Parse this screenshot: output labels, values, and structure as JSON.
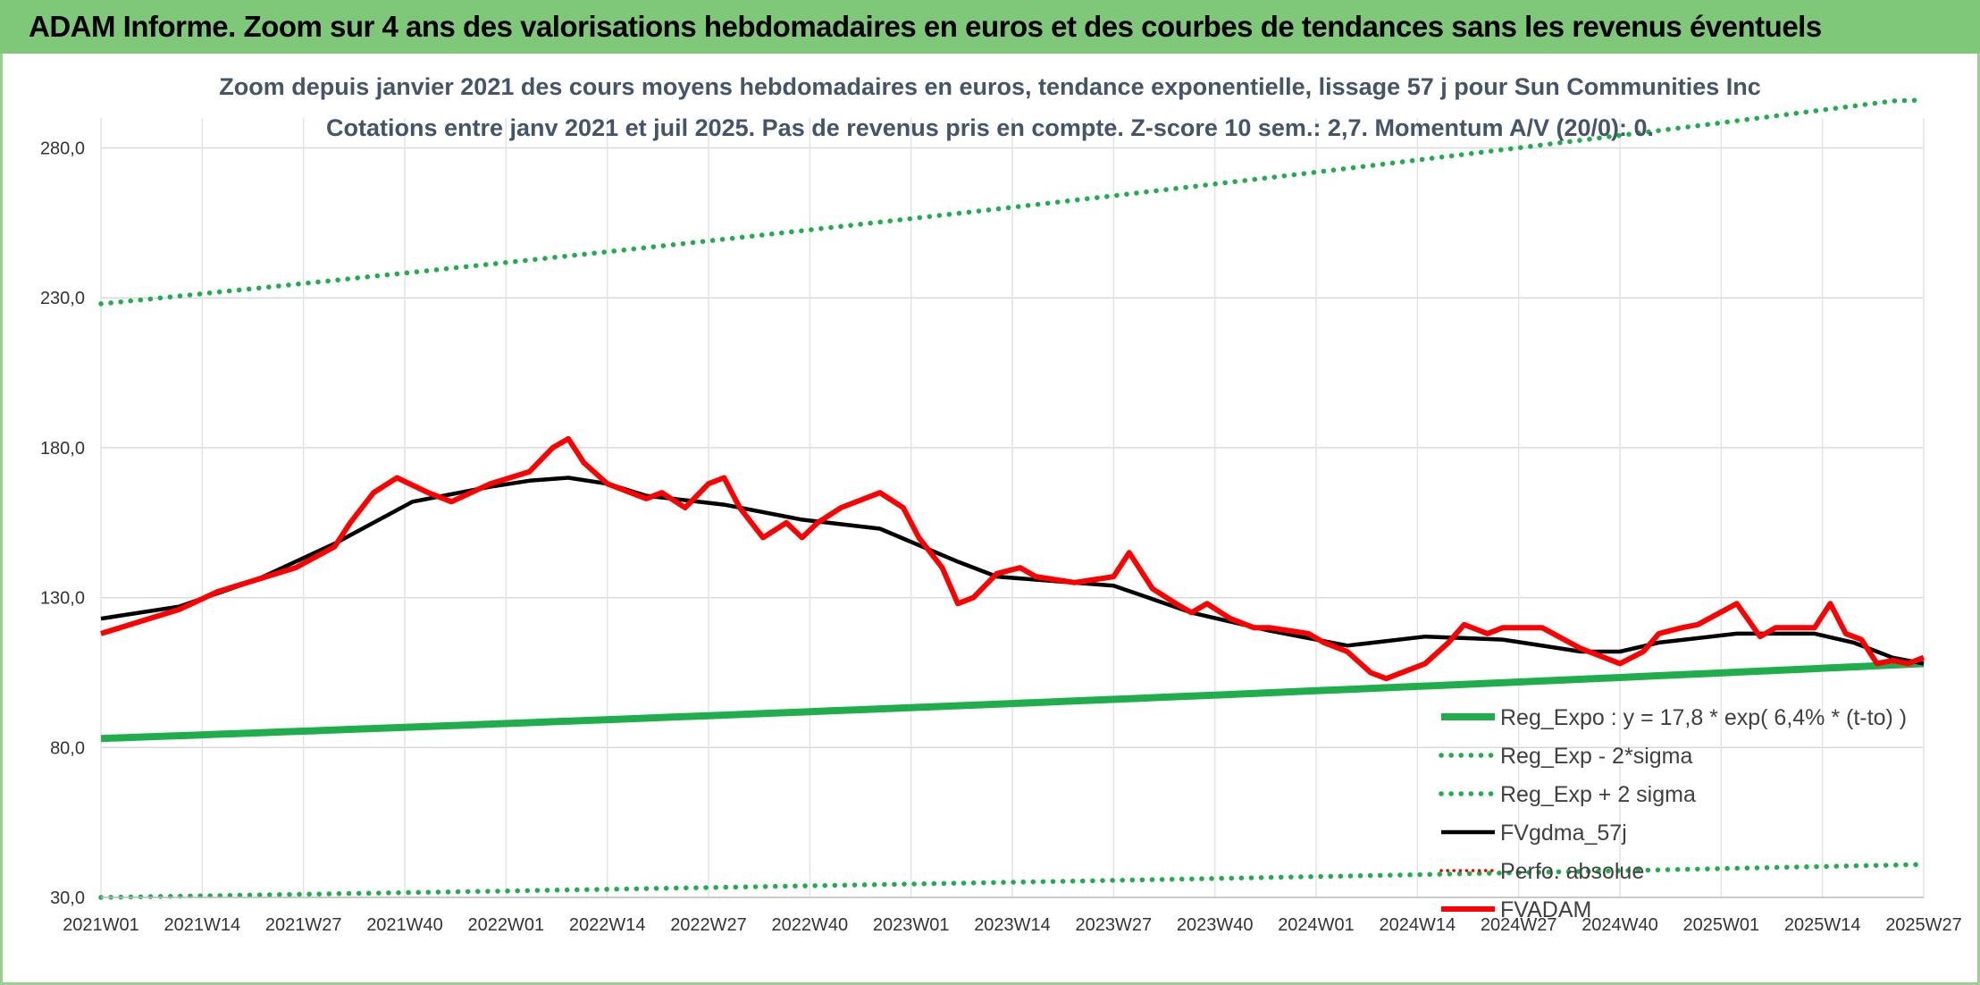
{
  "header": {
    "title": "ADAM Informe. Zoom sur 4 ans des valorisations hebdomadaires en euros et des courbes de tendances sans les revenus éventuels"
  },
  "chart_data": {
    "type": "line",
    "title": "Zoom depuis janvier 2021 des cours moyens hebdomadaires en euros, tendance exponentielle, lissage 57 j pour Sun Communities Inc",
    "subtitle": "Cotations entre janv 2021 et juil 2025. Pas de revenus pris en compte. Z-score 10 sem.: 2,7. Momentum A/V (20/0): 0.",
    "xlabel": "",
    "ylabel": "",
    "ylim": [
      30,
      290
    ],
    "yticks": [
      "30,0",
      "80,0",
      "130,0",
      "180,0",
      "230,0",
      "280,0"
    ],
    "xticks": [
      "2021W01",
      "2021W14",
      "2021W27",
      "2021W40",
      "2022W01",
      "2022W14",
      "2022W27",
      "2022W40",
      "2023W01",
      "2023W14",
      "2023W27",
      "2023W40",
      "2024W01",
      "2024W14",
      "2024W27",
      "2024W40",
      "2025W01",
      "2025W14",
      "2025W27"
    ],
    "grid": true,
    "legend_position": "bottom-right",
    "series": [
      {
        "name": "Reg_Expo : y = 17,8 * exp( 6,4% * (t-to) )",
        "color": "#1fae4b",
        "style": "solid-thick",
        "x": [
          0,
          234
        ],
        "values": [
          83,
          108
        ]
      },
      {
        "name": "Reg_Exp - 2*sigma",
        "color": "#1fae4b",
        "style": "dotted",
        "x": [
          0,
          234
        ],
        "values": [
          30,
          41
        ]
      },
      {
        "name": "Reg_Exp + 2 sigma",
        "color": "#1fae4b",
        "style": "dotted",
        "x": [
          0,
          234
        ],
        "values": [
          228,
          297
        ]
      },
      {
        "name": "FVgdma_57j",
        "color": "#000000",
        "style": "solid",
        "x": [
          0,
          10,
          20,
          30,
          40,
          50,
          55,
          60,
          65,
          70,
          80,
          90,
          100,
          110,
          115,
          120,
          130,
          140,
          150,
          160,
          170,
          180,
          190,
          195,
          200,
          210,
          220,
          225,
          230,
          234
        ],
        "values": [
          123,
          127,
          136,
          148,
          162,
          167,
          169,
          170,
          168,
          164,
          161,
          156,
          153,
          142,
          137,
          136,
          134,
          125,
          119,
          114,
          117,
          116,
          112,
          112,
          115,
          118,
          118,
          115,
          110,
          108
        ]
      },
      {
        "name": "Perfo. absolue",
        "color": "#e00000",
        "style": "dotted",
        "x": [],
        "values": []
      },
      {
        "name": "FVADAM",
        "color": "#ff0000",
        "style": "solid-thick",
        "x": [
          0,
          5,
          10,
          15,
          20,
          25,
          30,
          32,
          35,
          38,
          42,
          45,
          50,
          55,
          58,
          60,
          62,
          65,
          70,
          72,
          75,
          78,
          80,
          82,
          85,
          88,
          90,
          92,
          95,
          100,
          103,
          105,
          108,
          110,
          112,
          115,
          118,
          120,
          125,
          130,
          132,
          135,
          138,
          140,
          142,
          145,
          148,
          150,
          155,
          157,
          160,
          163,
          165,
          170,
          173,
          175,
          178,
          180,
          185,
          190,
          195,
          198,
          200,
          203,
          205,
          210,
          213,
          215,
          220,
          222,
          224,
          226,
          228,
          230,
          232,
          234
        ],
        "values": [
          118,
          122,
          126,
          132,
          136,
          140,
          147,
          155,
          165,
          170,
          165,
          162,
          168,
          172,
          180,
          183,
          175,
          168,
          163,
          165,
          160,
          168,
          170,
          160,
          150,
          155,
          150,
          155,
          160,
          165,
          160,
          150,
          140,
          128,
          130,
          138,
          140,
          137,
          135,
          137,
          145,
          133,
          128,
          125,
          128,
          123,
          120,
          120,
          118,
          115,
          112,
          105,
          103,
          108,
          115,
          121,
          118,
          120,
          120,
          113,
          108,
          112,
          118,
          120,
          121,
          128,
          117,
          120,
          120,
          128,
          118,
          116,
          108,
          109,
          108,
          110
        ]
      }
    ]
  }
}
